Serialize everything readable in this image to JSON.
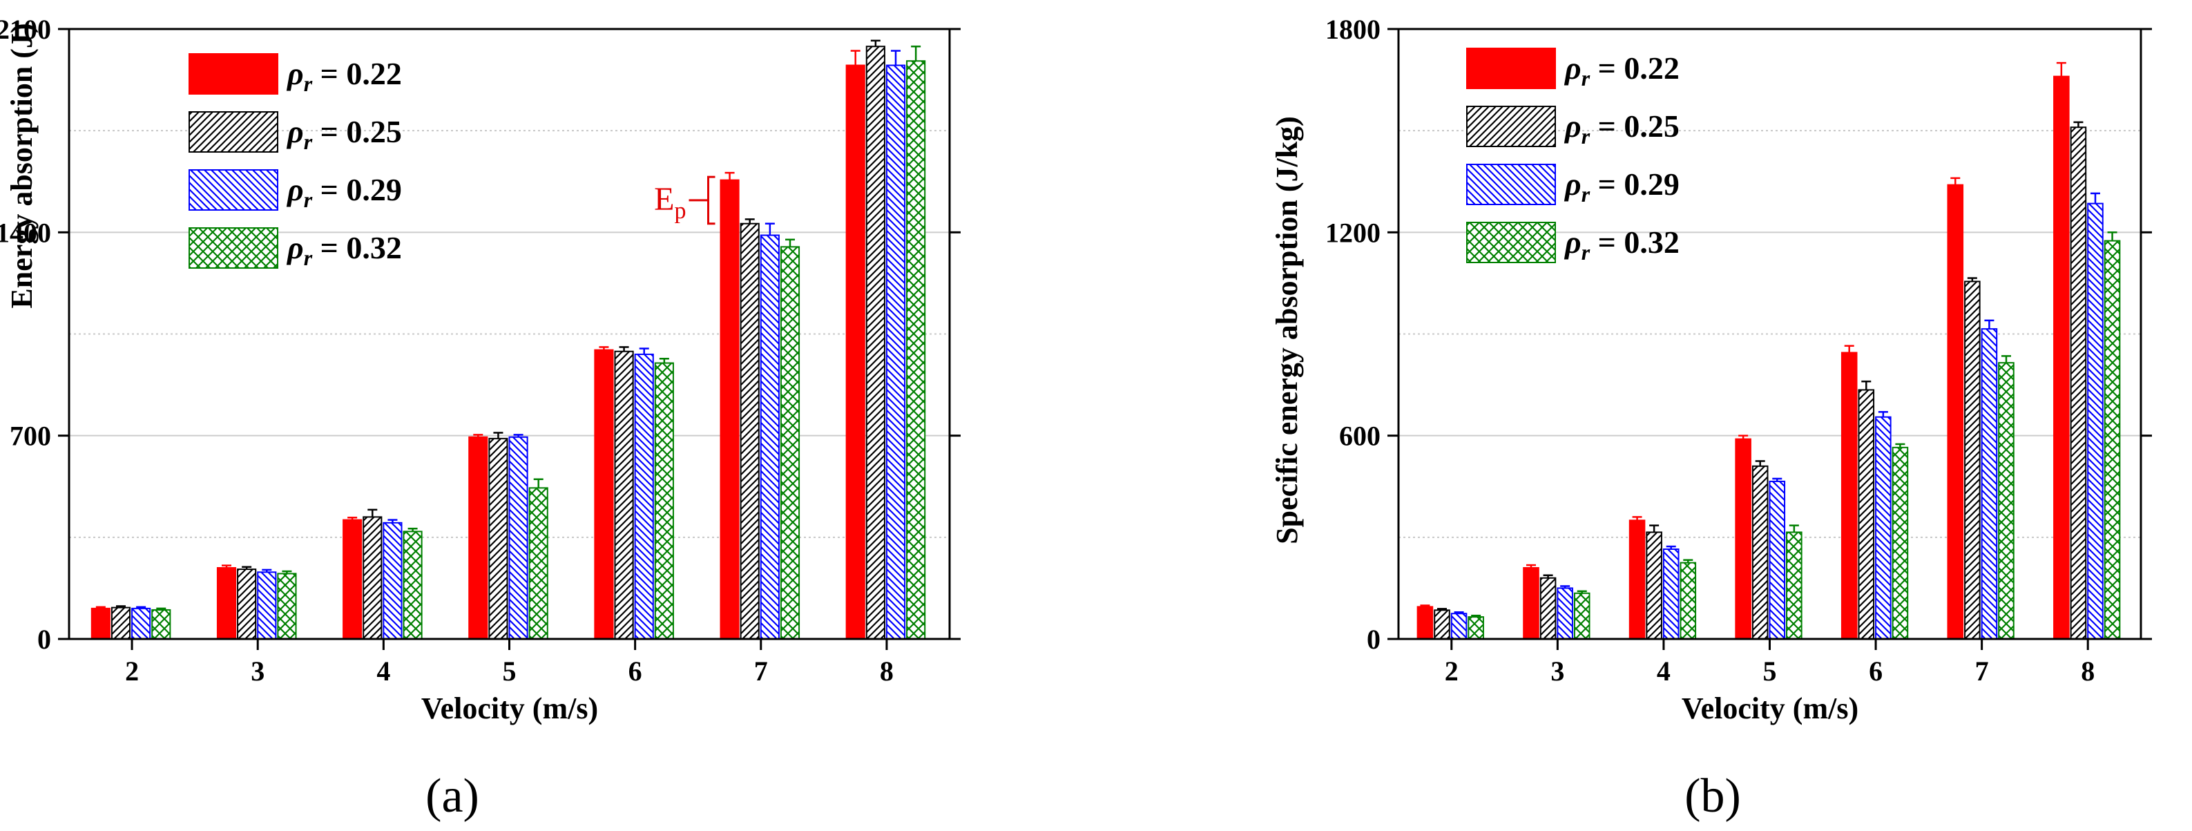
{
  "colors": {
    "red": "#ff0000",
    "black": "#000000",
    "blue": "#0000ff",
    "green": "#008000"
  },
  "chart_data": [
    {
      "type": "bar",
      "panel_label": "(a)",
      "xlabel": "Velocity (m/s)",
      "ylabel": "Energy absorption (J)",
      "ylim": [
        0,
        2100
      ],
      "yticks": [
        "0",
        "700",
        "1400",
        "2100"
      ],
      "categories": [
        "2",
        "3",
        "4",
        "5",
        "6",
        "7",
        "8"
      ],
      "legend_position": "top-left",
      "series": [
        {
          "name": "ρr = 0.22",
          "symbol": "ρ",
          "sub": "r",
          "value_text": " = 0.22",
          "pattern": "solid",
          "color": "#ff0000",
          "values": [
            105,
            245,
            410,
            695,
            995,
            1580,
            1975
          ],
          "errors": [
            5,
            8,
            8,
            8,
            10,
            25,
            50
          ]
        },
        {
          "name": "ρr = 0.25",
          "symbol": "ρ",
          "sub": "r",
          "value_text": " = 0.25",
          "pattern": "diag-right",
          "color": "#000000",
          "values": [
            108,
            240,
            420,
            690,
            990,
            1430,
            2040
          ],
          "errors": [
            5,
            8,
            25,
            20,
            15,
            15,
            20
          ]
        },
        {
          "name": "ρr = 0.29",
          "symbol": "ρ",
          "sub": "r",
          "value_text": " = 0.29",
          "pattern": "diag-left",
          "color": "#0000ff",
          "values": [
            105,
            230,
            400,
            695,
            980,
            1390,
            1975
          ],
          "errors": [
            5,
            8,
            10,
            8,
            20,
            40,
            50
          ]
        },
        {
          "name": "ρr = 0.32",
          "symbol": "ρ",
          "sub": "r",
          "value_text": " = 0.32",
          "pattern": "crosshatch",
          "color": "#008000",
          "values": [
            100,
            225,
            370,
            520,
            950,
            1350,
            1990
          ],
          "errors": [
            5,
            8,
            10,
            30,
            15,
            25,
            50
          ]
        }
      ],
      "annotation": {
        "label": "E",
        "sub": "p",
        "category": "7",
        "series": 0
      }
    },
    {
      "type": "bar",
      "panel_label": "(b)",
      "xlabel": "Velocity (m/s)",
      "ylabel": "Specific energy absorption (J/kg)",
      "ylim": [
        0,
        1800
      ],
      "yticks": [
        "0",
        "600",
        "1200",
        "1800"
      ],
      "categories": [
        "2",
        "3",
        "4",
        "5",
        "6",
        "7",
        "8"
      ],
      "legend_position": "top-left",
      "series": [
        {
          "name": "ρr = 0.22",
          "symbol": "ρ",
          "sub": "r",
          "value_text": " = 0.22",
          "pattern": "solid",
          "color": "#ff0000",
          "values": [
            95,
            210,
            350,
            590,
            845,
            1340,
            1660
          ],
          "errors": [
            4,
            8,
            10,
            10,
            20,
            20,
            40
          ]
        },
        {
          "name": "ρr = 0.25",
          "symbol": "ρ",
          "sub": "r",
          "value_text": " = 0.25",
          "pattern": "diag-right",
          "color": "#000000",
          "values": [
            85,
            180,
            315,
            510,
            735,
            1055,
            1510
          ],
          "errors": [
            4,
            8,
            20,
            15,
            25,
            10,
            15
          ]
        },
        {
          "name": "ρr = 0.29",
          "symbol": "ρ",
          "sub": "r",
          "value_text": " = 0.29",
          "pattern": "diag-left",
          "color": "#0000ff",
          "values": [
            75,
            150,
            265,
            465,
            655,
            915,
            1285
          ],
          "errors": [
            4,
            6,
            8,
            8,
            15,
            25,
            30
          ]
        },
        {
          "name": "ρr = 0.32",
          "symbol": "ρ",
          "sub": "r",
          "value_text": " = 0.32",
          "pattern": "crosshatch",
          "color": "#008000",
          "values": [
            65,
            135,
            225,
            315,
            565,
            815,
            1175
          ],
          "errors": [
            4,
            6,
            8,
            20,
            10,
            20,
            25
          ]
        }
      ]
    }
  ]
}
